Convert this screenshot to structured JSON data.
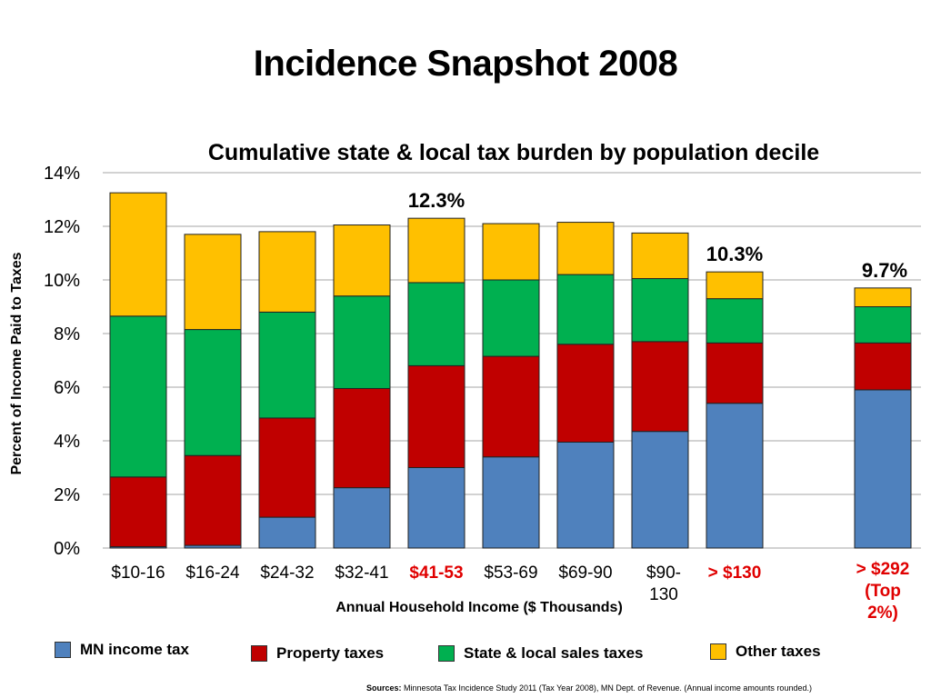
{
  "slide": {
    "title": "Incidence Snapshot 2008",
    "sources_label": "Sources:",
    "sources_text": "Minnesota Tax Incidence Study 2011 (Tax Year 2008), MN Dept. of Revenue. (Annual income amounts rounded.)"
  },
  "chart_data": {
    "type": "bar",
    "stacked": true,
    "title": "Cumulative state & local tax burden by population decile",
    "xlabel": "Annual Household Income ($ Thousands)",
    "ylabel": "Percent of Income Paid to Taxes",
    "ylim": [
      0,
      14
    ],
    "yticks": [
      "0%",
      "2%",
      "4%",
      "6%",
      "8%",
      "10%",
      "12%",
      "14%"
    ],
    "grid": true,
    "legend_position": "bottom",
    "categories": [
      "$10-16",
      "$16-24",
      "$24-32",
      "$32-41",
      "$41-53",
      "$53-69",
      "$69-90",
      "$90-130",
      "> $130",
      "> $292 (Top 2%)"
    ],
    "category_lines": [
      [
        "$10-16"
      ],
      [
        "$16-24"
      ],
      [
        "$24-32"
      ],
      [
        "$32-41"
      ],
      [
        "$41-53"
      ],
      [
        "$53-69"
      ],
      [
        "$69-90"
      ],
      [
        "$90-",
        "130"
      ],
      [
        "> $130"
      ],
      [
        "> $292",
        "(Top",
        "2%)"
      ]
    ],
    "highlighted_categories": [
      "$41-53",
      "> $130",
      "> $292 (Top 2%)"
    ],
    "series": [
      {
        "name": "MN income tax",
        "color": "#4f81bd",
        "values": [
          0.05,
          0.1,
          1.15,
          2.25,
          3.0,
          3.4,
          3.95,
          4.35,
          5.4,
          5.9
        ]
      },
      {
        "name": "Property taxes",
        "color": "#c00000",
        "values": [
          2.6,
          3.35,
          3.7,
          3.7,
          3.8,
          3.75,
          3.65,
          3.35,
          2.25,
          1.75
        ]
      },
      {
        "name": "State & local sales taxes",
        "color": "#00b050",
        "values": [
          6.0,
          4.7,
          3.95,
          3.45,
          3.1,
          2.85,
          2.6,
          2.35,
          1.65,
          1.35
        ]
      },
      {
        "name": "Other taxes",
        "color": "#ffc000",
        "values": [
          4.6,
          3.55,
          3.0,
          2.65,
          2.4,
          2.1,
          1.95,
          1.7,
          1.0,
          0.7
        ]
      }
    ],
    "annotations": [
      {
        "category": "$41-53",
        "text": "12.3%"
      },
      {
        "category": "> $130",
        "text": "10.3%"
      },
      {
        "category": "> $292 (Top 2%)",
        "text": "9.7%"
      }
    ]
  }
}
